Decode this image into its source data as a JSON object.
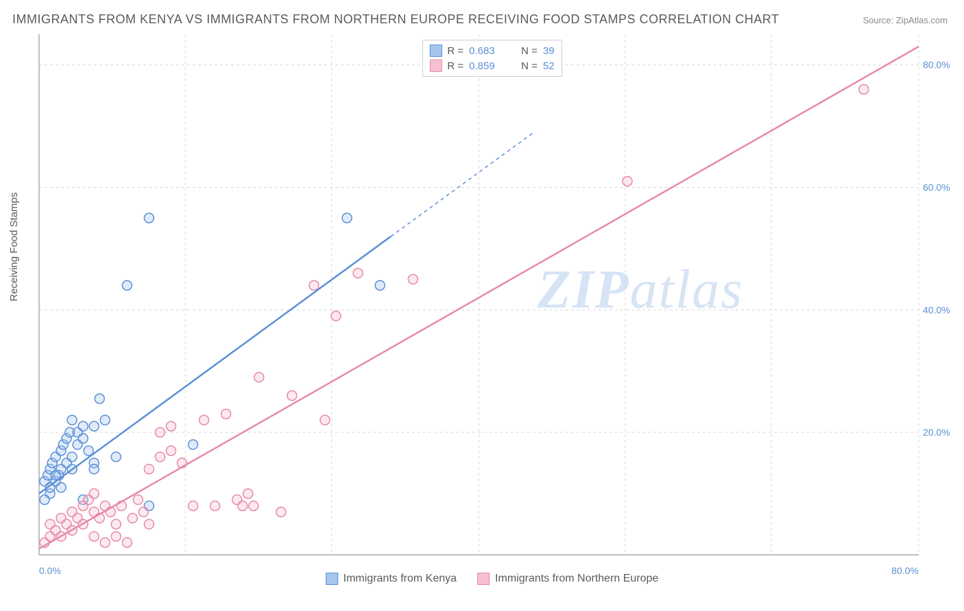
{
  "title": "IMMIGRANTS FROM KENYA VS IMMIGRANTS FROM NORTHERN EUROPE RECEIVING FOOD STAMPS CORRELATION CHART",
  "source_label": "Source: ",
  "source_value": "ZipAtlas.com",
  "y_axis_label": "Receiving Food Stamps",
  "watermark_text_1": "ZIP",
  "watermark_text_2": "atlas",
  "chart": {
    "type": "scatter",
    "xlim": [
      0,
      80
    ],
    "ylim": [
      0,
      85
    ],
    "x_ticks": [
      {
        "value": 0,
        "label": "0.0%"
      },
      {
        "value": 80,
        "label": "80.0%"
      }
    ],
    "y_ticks": [
      {
        "value": 20,
        "label": "20.0%"
      },
      {
        "value": 40,
        "label": "40.0%"
      },
      {
        "value": 60,
        "label": "60.0%"
      },
      {
        "value": 80,
        "label": "80.0%"
      }
    ],
    "x_gridlines": [
      13.3,
      26.6,
      40,
      53.3,
      66.6,
      80
    ],
    "background_color": "#ffffff",
    "grid_color": "#d8d8d8",
    "axis_color": "#bfbfbf",
    "marker_radius": 7,
    "marker_stroke_width": 1.5,
    "marker_fill_opacity": 0.35,
    "line_width": 2.5
  },
  "series": [
    {
      "name": "Immigrants from Kenya",
      "color_stroke": "#5b8fd6",
      "color_fill": "#a7c6ed",
      "r_value": "0.683",
      "n_value": "39",
      "trend": {
        "x1": 0,
        "y1": 10,
        "x2": 32,
        "y2": 52,
        "dash_extend_x": 45,
        "dash_extend_y": 69
      },
      "points": [
        [
          0.5,
          12
        ],
        [
          0.8,
          13
        ],
        [
          1,
          14
        ],
        [
          1,
          10
        ],
        [
          1.2,
          15
        ],
        [
          1.5,
          12
        ],
        [
          1.5,
          16
        ],
        [
          1.8,
          13
        ],
        [
          2,
          14
        ],
        [
          2,
          17
        ],
        [
          2.2,
          18
        ],
        [
          2.5,
          15
        ],
        [
          2.5,
          19
        ],
        [
          2.8,
          20
        ],
        [
          3,
          22
        ],
        [
          3,
          16
        ],
        [
          3.5,
          18
        ],
        [
          3.5,
          20
        ],
        [
          4,
          21
        ],
        [
          4,
          19
        ],
        [
          4.5,
          17
        ],
        [
          5,
          21
        ],
        [
          5,
          15
        ],
        [
          5.5,
          25.5
        ],
        [
          6,
          22
        ],
        [
          7,
          16
        ],
        [
          8,
          44
        ],
        [
          10,
          8
        ],
        [
          10,
          55
        ],
        [
          14,
          18
        ],
        [
          28,
          55
        ],
        [
          31,
          44
        ],
        [
          0.5,
          9
        ],
        [
          1,
          11
        ],
        [
          1.5,
          13
        ],
        [
          2,
          11
        ],
        [
          3,
          14
        ],
        [
          4,
          9
        ],
        [
          5,
          14
        ]
      ]
    },
    {
      "name": "Immigrants from Northern Europe",
      "color_stroke": "#e68aa5",
      "color_fill": "#f5c1d0",
      "r_value": "0.859",
      "n_value": "52",
      "trend": {
        "x1": 0,
        "y1": 1,
        "x2": 80,
        "y2": 83
      },
      "points": [
        [
          0.5,
          2
        ],
        [
          1,
          3
        ],
        [
          1,
          5
        ],
        [
          1.5,
          4
        ],
        [
          2,
          6
        ],
        [
          2,
          3
        ],
        [
          2.5,
          5
        ],
        [
          3,
          7
        ],
        [
          3,
          4
        ],
        [
          3.5,
          6
        ],
        [
          4,
          8
        ],
        [
          4,
          5
        ],
        [
          4.5,
          9
        ],
        [
          5,
          7
        ],
        [
          5,
          10
        ],
        [
          5.5,
          6
        ],
        [
          6,
          8
        ],
        [
          6.5,
          7
        ],
        [
          7,
          5
        ],
        [
          7.5,
          8
        ],
        [
          8,
          2
        ],
        [
          8.5,
          6
        ],
        [
          9,
          9
        ],
        [
          9.5,
          7
        ],
        [
          10,
          14
        ],
        [
          10,
          5
        ],
        [
          11,
          16
        ],
        [
          11,
          20
        ],
        [
          12,
          17
        ],
        [
          12,
          21
        ],
        [
          13,
          15
        ],
        [
          14,
          8
        ],
        [
          15,
          22
        ],
        [
          16,
          8
        ],
        [
          17,
          23
        ],
        [
          18,
          9
        ],
        [
          18.5,
          8
        ],
        [
          19,
          10
        ],
        [
          19.5,
          8
        ],
        [
          20,
          29
        ],
        [
          22,
          7
        ],
        [
          23,
          26
        ],
        [
          25,
          44
        ],
        [
          26,
          22
        ],
        [
          27,
          39
        ],
        [
          29,
          46
        ],
        [
          34,
          45
        ],
        [
          53.5,
          61
        ],
        [
          75,
          76
        ],
        [
          5,
          3
        ],
        [
          6,
          2
        ],
        [
          7,
          3
        ]
      ]
    }
  ],
  "bottom_legend": [
    {
      "swatch_stroke": "#5b8fd6",
      "swatch_fill": "#a7c6ed",
      "label": "Immigrants from Kenya"
    },
    {
      "swatch_stroke": "#e68aa5",
      "swatch_fill": "#f5c1d0",
      "label": "Immigrants from Northern Europe"
    }
  ]
}
